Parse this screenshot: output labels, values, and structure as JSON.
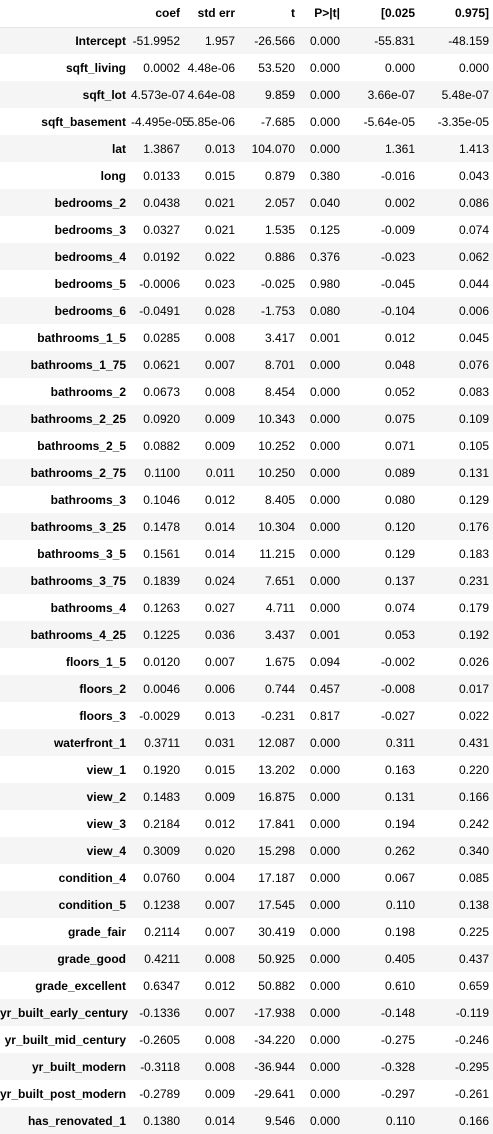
{
  "headers": [
    "",
    "coef",
    "std err",
    "t",
    "P>|t|",
    "[0.025",
    "0.975]"
  ],
  "rows": [
    {
      "name": "Intercept",
      "coef": "-51.9952",
      "std_err": "1.957",
      "t": "-26.566",
      "p": "0.000",
      "ci_low": "-55.831",
      "ci_high": "-48.159"
    },
    {
      "name": "sqft_living",
      "coef": "0.0002",
      "std_err": "4.48e-06",
      "t": "53.520",
      "p": "0.000",
      "ci_low": "0.000",
      "ci_high": "0.000"
    },
    {
      "name": "sqft_lot",
      "coef": "4.573e-07",
      "std_err": "4.64e-08",
      "t": "9.859",
      "p": "0.000",
      "ci_low": "3.66e-07",
      "ci_high": "5.48e-07"
    },
    {
      "name": "sqft_basement",
      "coef": "-4.495e-05",
      "std_err": "5.85e-06",
      "t": "-7.685",
      "p": "0.000",
      "ci_low": "-5.64e-05",
      "ci_high": "-3.35e-05"
    },
    {
      "name": "lat",
      "coef": "1.3867",
      "std_err": "0.013",
      "t": "104.070",
      "p": "0.000",
      "ci_low": "1.361",
      "ci_high": "1.413"
    },
    {
      "name": "long",
      "coef": "0.0133",
      "std_err": "0.015",
      "t": "0.879",
      "p": "0.380",
      "ci_low": "-0.016",
      "ci_high": "0.043"
    },
    {
      "name": "bedrooms_2",
      "coef": "0.0438",
      "std_err": "0.021",
      "t": "2.057",
      "p": "0.040",
      "ci_low": "0.002",
      "ci_high": "0.086"
    },
    {
      "name": "bedrooms_3",
      "coef": "0.0327",
      "std_err": "0.021",
      "t": "1.535",
      "p": "0.125",
      "ci_low": "-0.009",
      "ci_high": "0.074"
    },
    {
      "name": "bedrooms_4",
      "coef": "0.0192",
      "std_err": "0.022",
      "t": "0.886",
      "p": "0.376",
      "ci_low": "-0.023",
      "ci_high": "0.062"
    },
    {
      "name": "bedrooms_5",
      "coef": "-0.0006",
      "std_err": "0.023",
      "t": "-0.025",
      "p": "0.980",
      "ci_low": "-0.045",
      "ci_high": "0.044"
    },
    {
      "name": "bedrooms_6",
      "coef": "-0.0491",
      "std_err": "0.028",
      "t": "-1.753",
      "p": "0.080",
      "ci_low": "-0.104",
      "ci_high": "0.006"
    },
    {
      "name": "bathrooms_1_5",
      "coef": "0.0285",
      "std_err": "0.008",
      "t": "3.417",
      "p": "0.001",
      "ci_low": "0.012",
      "ci_high": "0.045"
    },
    {
      "name": "bathrooms_1_75",
      "coef": "0.0621",
      "std_err": "0.007",
      "t": "8.701",
      "p": "0.000",
      "ci_low": "0.048",
      "ci_high": "0.076"
    },
    {
      "name": "bathrooms_2",
      "coef": "0.0673",
      "std_err": "0.008",
      "t": "8.454",
      "p": "0.000",
      "ci_low": "0.052",
      "ci_high": "0.083"
    },
    {
      "name": "bathrooms_2_25",
      "coef": "0.0920",
      "std_err": "0.009",
      "t": "10.343",
      "p": "0.000",
      "ci_low": "0.075",
      "ci_high": "0.109"
    },
    {
      "name": "bathrooms_2_5",
      "coef": "0.0882",
      "std_err": "0.009",
      "t": "10.252",
      "p": "0.000",
      "ci_low": "0.071",
      "ci_high": "0.105"
    },
    {
      "name": "bathrooms_2_75",
      "coef": "0.1100",
      "std_err": "0.011",
      "t": "10.250",
      "p": "0.000",
      "ci_low": "0.089",
      "ci_high": "0.131"
    },
    {
      "name": "bathrooms_3",
      "coef": "0.1046",
      "std_err": "0.012",
      "t": "8.405",
      "p": "0.000",
      "ci_low": "0.080",
      "ci_high": "0.129"
    },
    {
      "name": "bathrooms_3_25",
      "coef": "0.1478",
      "std_err": "0.014",
      "t": "10.304",
      "p": "0.000",
      "ci_low": "0.120",
      "ci_high": "0.176"
    },
    {
      "name": "bathrooms_3_5",
      "coef": "0.1561",
      "std_err": "0.014",
      "t": "11.215",
      "p": "0.000",
      "ci_low": "0.129",
      "ci_high": "0.183"
    },
    {
      "name": "bathrooms_3_75",
      "coef": "0.1839",
      "std_err": "0.024",
      "t": "7.651",
      "p": "0.000",
      "ci_low": "0.137",
      "ci_high": "0.231"
    },
    {
      "name": "bathrooms_4",
      "coef": "0.1263",
      "std_err": "0.027",
      "t": "4.711",
      "p": "0.000",
      "ci_low": "0.074",
      "ci_high": "0.179"
    },
    {
      "name": "bathrooms_4_25",
      "coef": "0.1225",
      "std_err": "0.036",
      "t": "3.437",
      "p": "0.001",
      "ci_low": "0.053",
      "ci_high": "0.192"
    },
    {
      "name": "floors_1_5",
      "coef": "0.0120",
      "std_err": "0.007",
      "t": "1.675",
      "p": "0.094",
      "ci_low": "-0.002",
      "ci_high": "0.026"
    },
    {
      "name": "floors_2",
      "coef": "0.0046",
      "std_err": "0.006",
      "t": "0.744",
      "p": "0.457",
      "ci_low": "-0.008",
      "ci_high": "0.017"
    },
    {
      "name": "floors_3",
      "coef": "-0.0029",
      "std_err": "0.013",
      "t": "-0.231",
      "p": "0.817",
      "ci_low": "-0.027",
      "ci_high": "0.022"
    },
    {
      "name": "waterfront_1",
      "coef": "0.3711",
      "std_err": "0.031",
      "t": "12.087",
      "p": "0.000",
      "ci_low": "0.311",
      "ci_high": "0.431"
    },
    {
      "name": "view_1",
      "coef": "0.1920",
      "std_err": "0.015",
      "t": "13.202",
      "p": "0.000",
      "ci_low": "0.163",
      "ci_high": "0.220"
    },
    {
      "name": "view_2",
      "coef": "0.1483",
      "std_err": "0.009",
      "t": "16.875",
      "p": "0.000",
      "ci_low": "0.131",
      "ci_high": "0.166"
    },
    {
      "name": "view_3",
      "coef": "0.2184",
      "std_err": "0.012",
      "t": "17.841",
      "p": "0.000",
      "ci_low": "0.194",
      "ci_high": "0.242"
    },
    {
      "name": "view_4",
      "coef": "0.3009",
      "std_err": "0.020",
      "t": "15.298",
      "p": "0.000",
      "ci_low": "0.262",
      "ci_high": "0.340"
    },
    {
      "name": "condition_4",
      "coef": "0.0760",
      "std_err": "0.004",
      "t": "17.187",
      "p": "0.000",
      "ci_low": "0.067",
      "ci_high": "0.085"
    },
    {
      "name": "condition_5",
      "coef": "0.1238",
      "std_err": "0.007",
      "t": "17.545",
      "p": "0.000",
      "ci_low": "0.110",
      "ci_high": "0.138"
    },
    {
      "name": "grade_fair",
      "coef": "0.2114",
      "std_err": "0.007",
      "t": "30.419",
      "p": "0.000",
      "ci_low": "0.198",
      "ci_high": "0.225"
    },
    {
      "name": "grade_good",
      "coef": "0.4211",
      "std_err": "0.008",
      "t": "50.925",
      "p": "0.000",
      "ci_low": "0.405",
      "ci_high": "0.437"
    },
    {
      "name": "grade_excellent",
      "coef": "0.6347",
      "std_err": "0.012",
      "t": "50.882",
      "p": "0.000",
      "ci_low": "0.610",
      "ci_high": "0.659"
    },
    {
      "name": "yr_built_early_century",
      "coef": "-0.1336",
      "std_err": "0.007",
      "t": "-17.938",
      "p": "0.000",
      "ci_low": "-0.148",
      "ci_high": "-0.119"
    },
    {
      "name": "yr_built_mid_century",
      "coef": "-0.2605",
      "std_err": "0.008",
      "t": "-34.220",
      "p": "0.000",
      "ci_low": "-0.275",
      "ci_high": "-0.246"
    },
    {
      "name": "yr_built_modern",
      "coef": "-0.3118",
      "std_err": "0.008",
      "t": "-36.944",
      "p": "0.000",
      "ci_low": "-0.328",
      "ci_high": "-0.295"
    },
    {
      "name": "yr_built_post_modern",
      "coef": "-0.2789",
      "std_err": "0.009",
      "t": "-29.641",
      "p": "0.000",
      "ci_low": "-0.297",
      "ci_high": "-0.261"
    },
    {
      "name": "has_renovated_1",
      "coef": "0.1380",
      "std_err": "0.014",
      "t": "9.546",
      "p": "0.000",
      "ci_low": "0.110",
      "ci_high": "0.166"
    }
  ]
}
